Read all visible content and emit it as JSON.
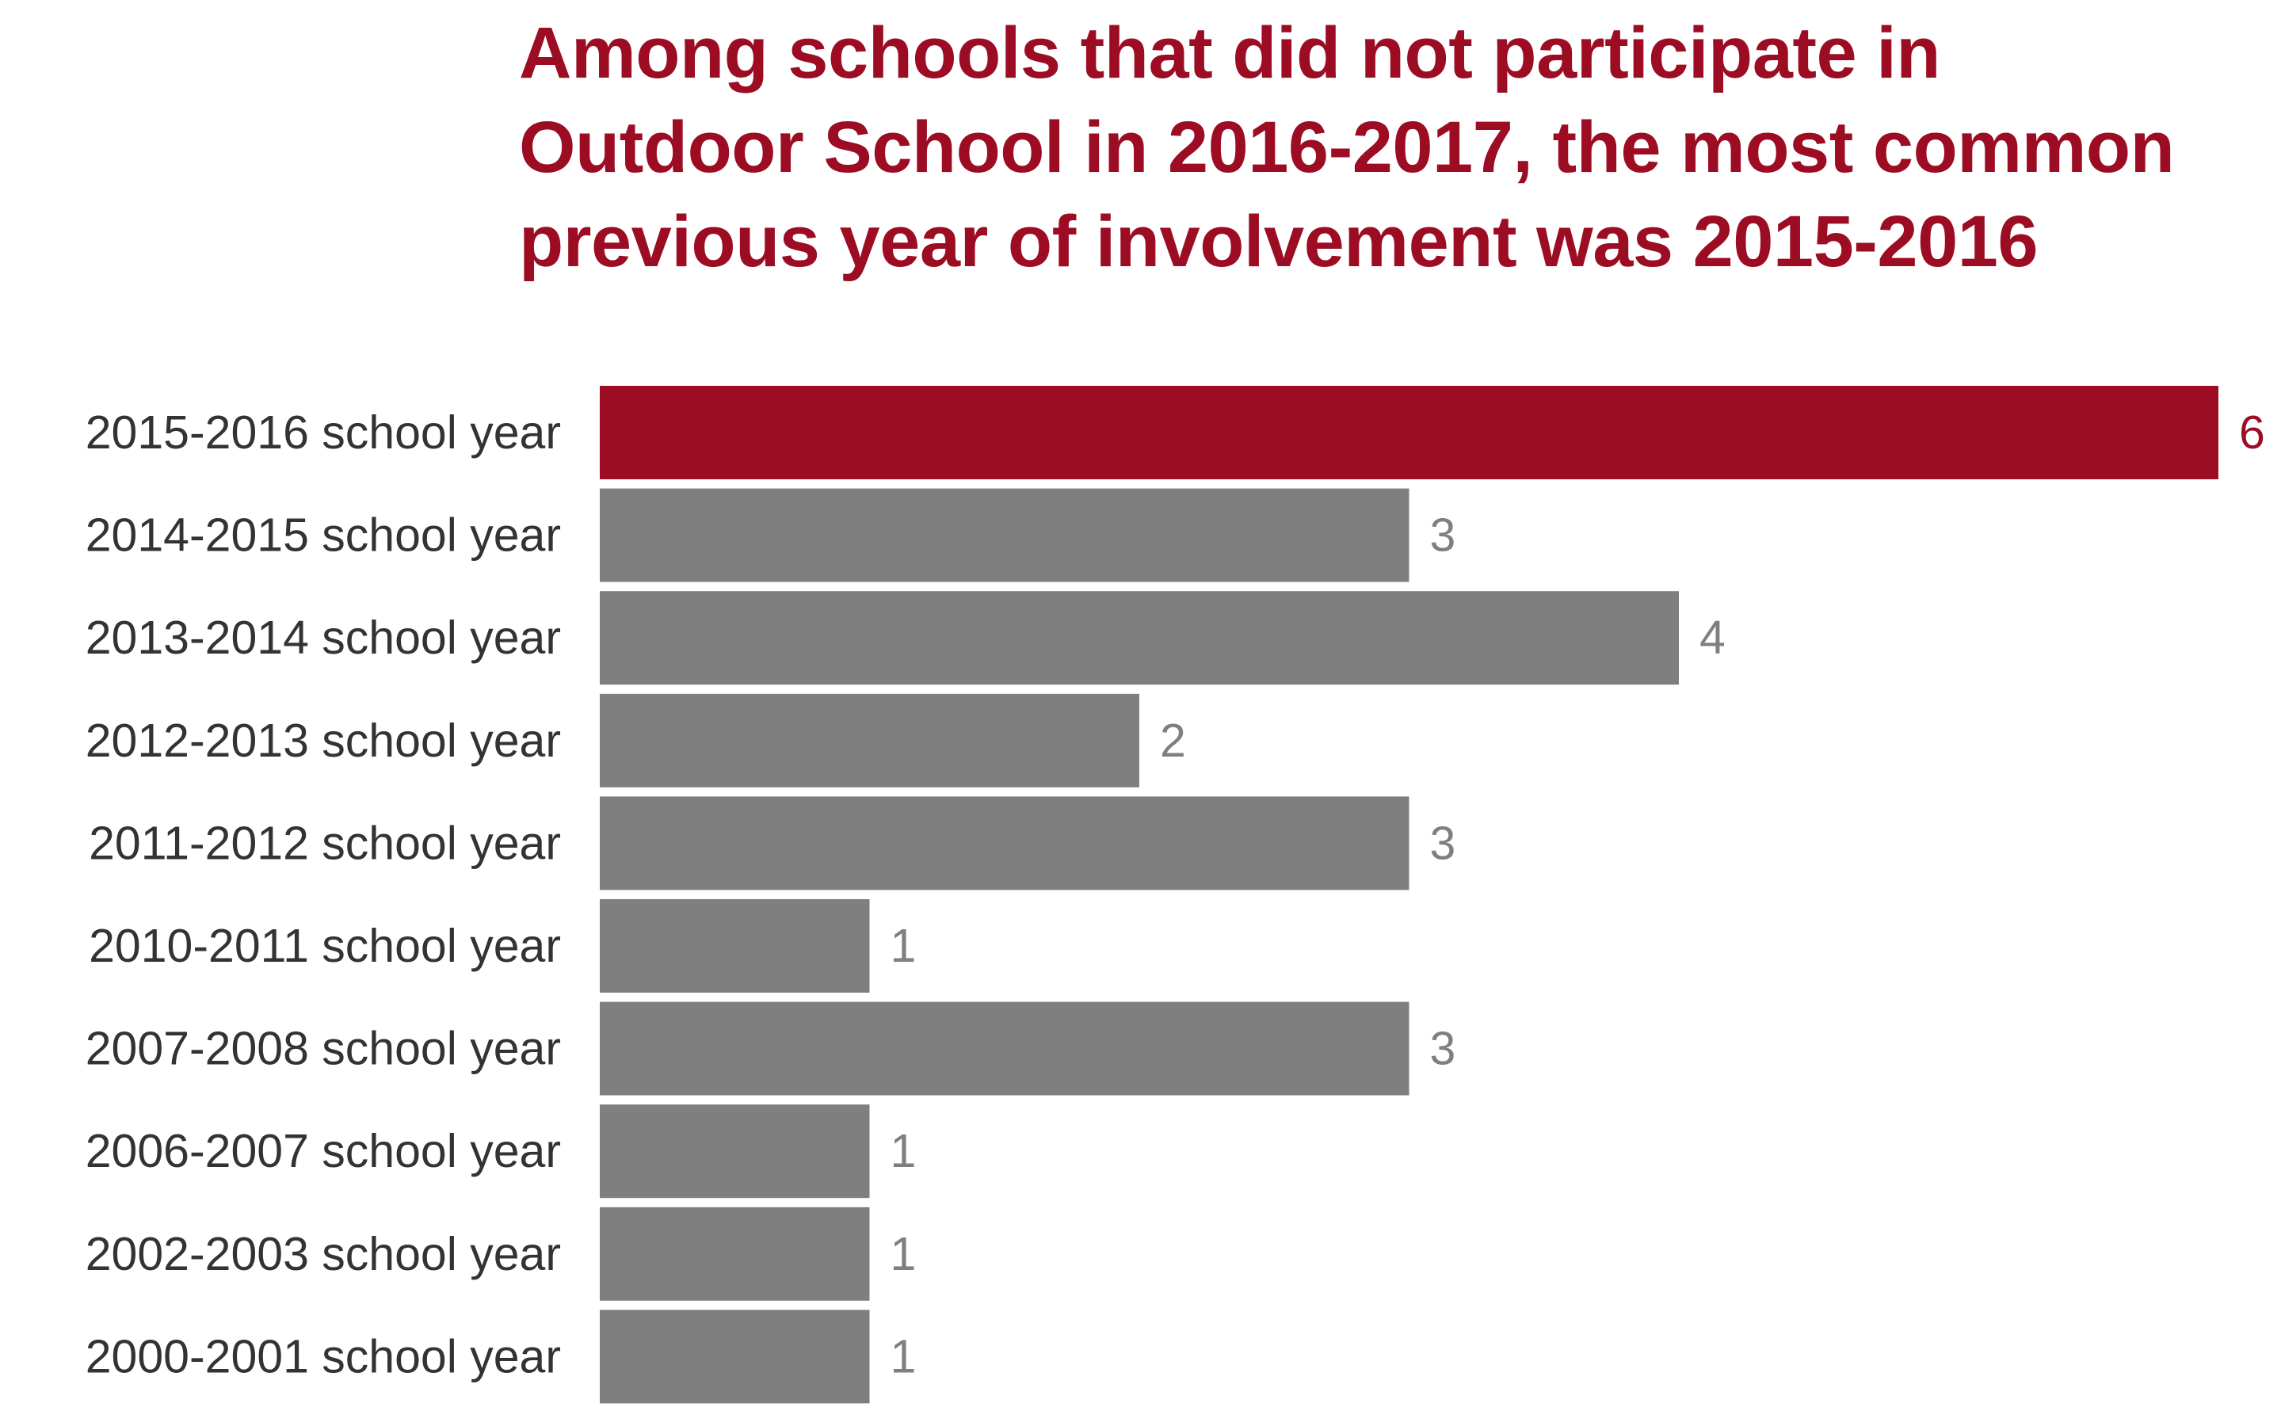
{
  "chart_data": {
    "type": "bar",
    "orientation": "horizontal",
    "title": "Among schools that did not participate in Outdoor School in 2016-2017, the most common previous year of involvement was 2015-2016",
    "xlabel": "",
    "ylabel": "",
    "categories": [
      "2015-2016 school year",
      "2014-2015 school year",
      "2013-2014 school year",
      "2012-2013 school year",
      "2011-2012 school year",
      "2010-2011 school year",
      "2007-2008 school year",
      "2006-2007 school year",
      "2002-2003 school year",
      "2000-2001 school year"
    ],
    "values": [
      6,
      3,
      4,
      2,
      3,
      1,
      3,
      1,
      1,
      1
    ],
    "xlim": [
      0,
      6
    ],
    "grid": false,
    "legend": "none",
    "data_labels": true,
    "highlight_index": 0,
    "colors": {
      "highlight": "#9c0d24",
      "default_bar": "#7f7f7f",
      "highlight_label": "#9c0d24",
      "default_label": "#7f7f7f",
      "category_text": "#333333",
      "title": "#9c0d24"
    }
  }
}
